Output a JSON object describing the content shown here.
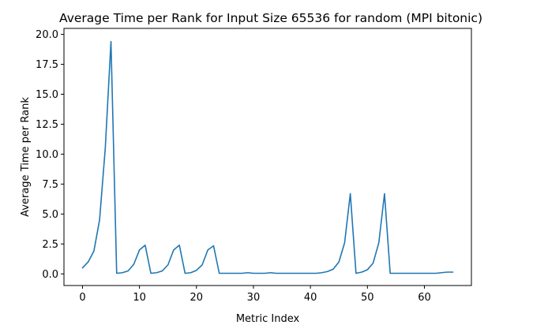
{
  "chart_data": {
    "type": "line",
    "title": "Average Time per Rank for Input Size 65536 for random (MPI bitonic)",
    "xlabel": "Metric Index",
    "ylabel": "Average Time per Rank",
    "xlim": [
      -3.25,
      68.25
    ],
    "ylim": [
      -0.97,
      20.5
    ],
    "xticks": [
      0,
      10,
      20,
      30,
      40,
      50,
      60
    ],
    "yticks": [
      0.0,
      2.5,
      5.0,
      7.5,
      10.0,
      12.5,
      15.0,
      17.5,
      20.0
    ],
    "ytick_labels": [
      "0.0",
      "2.5",
      "5.0",
      "7.5",
      "10.0",
      "12.5",
      "15.0",
      "17.5",
      "20.0"
    ],
    "grid": false,
    "legend": "none",
    "line_color": "#1f77b4",
    "series": [
      {
        "x": [
          0,
          1,
          2,
          3,
          4,
          5,
          6,
          7,
          8,
          9,
          10,
          11,
          12,
          13,
          14,
          15,
          16,
          17,
          18,
          19,
          20,
          21,
          22,
          23,
          24,
          25,
          26,
          27,
          28,
          29,
          30,
          31,
          32,
          33,
          34,
          35,
          36,
          37,
          38,
          39,
          40,
          41,
          42,
          43,
          44,
          45,
          46,
          47,
          48,
          49,
          50,
          51,
          52,
          53,
          54,
          55,
          56,
          57,
          58,
          59,
          60,
          61,
          62,
          63,
          64,
          65
        ],
        "values": [
          0.5,
          1.0,
          1.9,
          4.5,
          10.5,
          19.4,
          0.05,
          0.1,
          0.25,
          0.8,
          2.0,
          2.4,
          0.05,
          0.1,
          0.25,
          0.75,
          2.0,
          2.4,
          0.05,
          0.1,
          0.3,
          0.75,
          2.0,
          2.35,
          0.05,
          0.05,
          0.05,
          0.05,
          0.05,
          0.1,
          0.05,
          0.05,
          0.05,
          0.1,
          0.05,
          0.05,
          0.05,
          0.05,
          0.05,
          0.05,
          0.05,
          0.05,
          0.1,
          0.2,
          0.4,
          1.0,
          2.6,
          6.7,
          0.05,
          0.15,
          0.35,
          0.9,
          2.6,
          6.7,
          0.05,
          0.05,
          0.05,
          0.05,
          0.05,
          0.05,
          0.05,
          0.05,
          0.05,
          0.1,
          0.15,
          0.15
        ]
      }
    ]
  }
}
